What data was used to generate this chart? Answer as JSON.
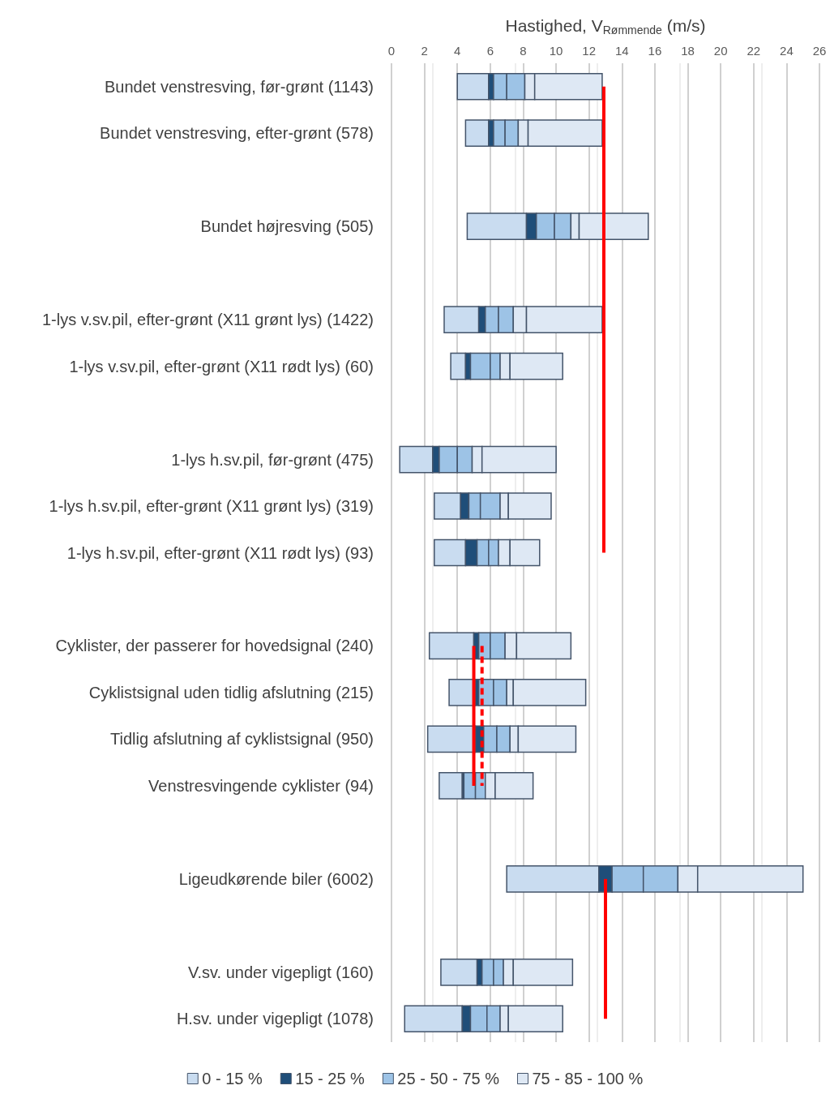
{
  "chart_data": {
    "type": "bar",
    "orientation": "horizontal",
    "stacked": true,
    "xlabel": "Hastighed, V$_{Rømmende}$ (m/s)",
    "categories": [
      "Bundet venstresving, før-grønt (1143)",
      "Bundet venstresving, efter-grønt (578)",
      null,
      "Bundet højresving (505)",
      null,
      "1-lys v.sv.pil, efter-grønt (X11 grønt lys) (1422)",
      "1-lys v.sv.pil, efter-grønt (X11 rødt lys) (60)",
      null,
      "1-lys h.sv.pil, før-grønt (475)",
      "1-lys h.sv.pil, efter-grønt (X11 grønt lys) (319)",
      "1-lys h.sv.pil, efter-grønt (X11 rødt lys) (93)",
      null,
      "Cyklister, der passerer for hovedsignal (240)",
      "Cyklistsignal uden tidlig afslutning (215)",
      "Tidlig afslutning af cyklistsignal (950)",
      "Venstresvingende cyklister (94)",
      null,
      "Ligeudkørende biler (6002)",
      null,
      "V.sv. under vigepligt (160)",
      "H.sv. under vigepligt (1078)"
    ],
    "series": [
      {
        "name": "0 - 15 %",
        "color": "#c9dcf0",
        "base": [
          4.0,
          4.5,
          null,
          4.6,
          null,
          3.2,
          3.6,
          null,
          0.5,
          2.6,
          2.6,
          null,
          2.3,
          3.5,
          2.2,
          2.9,
          null,
          7.0,
          null,
          3.0,
          0.8
        ],
        "values": [
          1.9,
          1.4,
          null,
          3.6,
          null,
          2.1,
          0.9,
          null,
          2.0,
          1.6,
          1.9,
          null,
          2.7,
          1.6,
          2.9,
          1.4,
          null,
          5.6,
          null,
          2.2,
          3.5
        ]
      },
      {
        "name": "15 - 25 %",
        "color": "#1f4e79",
        "values": [
          0.3,
          0.3,
          null,
          0.6,
          null,
          0.4,
          0.3,
          null,
          0.4,
          0.5,
          0.7,
          null,
          0.3,
          0.2,
          0.5,
          0.1,
          null,
          0.8,
          null,
          0.3,
          0.5
        ]
      },
      {
        "name": "25 - 50 - 75 %",
        "color": "#9dc3e6",
        "values": [
          0.8,
          0.7,
          null,
          1.1,
          null,
          0.8,
          1.2,
          null,
          1.1,
          0.7,
          0.7,
          null,
          0.7,
          0.9,
          0.8,
          0.7,
          null,
          1.9,
          null,
          0.7,
          1.0
        ]
      },
      {
        "color": "#9dc3e6",
        "values": [
          1.1,
          0.8,
          null,
          1.0,
          null,
          0.9,
          0.6,
          null,
          0.9,
          1.2,
          0.6,
          null,
          0.9,
          0.8,
          0.8,
          0.6,
          null,
          2.1,
          null,
          0.6,
          0.8
        ]
      },
      {
        "name": "75 - 85 - 100 %",
        "color": "#dee8f4",
        "values": [
          0.6,
          0.6,
          null,
          0.5,
          null,
          0.8,
          0.6,
          null,
          0.6,
          0.5,
          0.7,
          null,
          0.7,
          0.4,
          0.5,
          0.6,
          null,
          1.2,
          null,
          0.6,
          0.5
        ]
      },
      {
        "color": "#dee8f4",
        "values": [
          4.1,
          4.5,
          null,
          4.2,
          null,
          4.6,
          3.2,
          null,
          4.5,
          2.6,
          1.8,
          null,
          3.3,
          4.4,
          3.5,
          2.3,
          null,
          6.4,
          null,
          3.6,
          3.3
        ]
      },
      {
        "type": "line",
        "color": "#ff0000",
        "line_style": "solid",
        "values": [
          12.9,
          12.9,
          12.9,
          12.9,
          12.9,
          12.9,
          12.9,
          12.9,
          12.9,
          12.9,
          12.9,
          null,
          null,
          null,
          null,
          null,
          null,
          null,
          null,
          null,
          null
        ]
      },
      {
        "type": "line",
        "color": "#ff0000",
        "line_style": "solid",
        "values": [
          null,
          null,
          null,
          null,
          null,
          null,
          null,
          null,
          null,
          null,
          null,
          null,
          5.0,
          5.0,
          5.0,
          5.0,
          null,
          null,
          null,
          null,
          null
        ]
      },
      {
        "type": "line",
        "color": "#ff0000",
        "line_style": "dashed",
        "values": [
          null,
          null,
          null,
          null,
          null,
          null,
          null,
          null,
          null,
          null,
          null,
          null,
          5.5,
          5.5,
          5.5,
          5.5,
          null,
          null,
          null,
          null,
          null
        ]
      },
      {
        "type": "line",
        "color": "#ff0000",
        "line_style": "solid",
        "values": [
          null,
          null,
          null,
          null,
          null,
          null,
          null,
          null,
          null,
          null,
          null,
          null,
          null,
          null,
          null,
          null,
          null,
          13.0,
          13.0,
          13.0,
          13.0
        ]
      }
    ],
    "xlim": [
      0,
      26
    ],
    "xticks": [
      0,
      2,
      4,
      6,
      8,
      10,
      12,
      14,
      16,
      18,
      20,
      22,
      24,
      26
    ],
    "grid": "x",
    "legend": "bottom",
    "marker": "none"
  }
}
